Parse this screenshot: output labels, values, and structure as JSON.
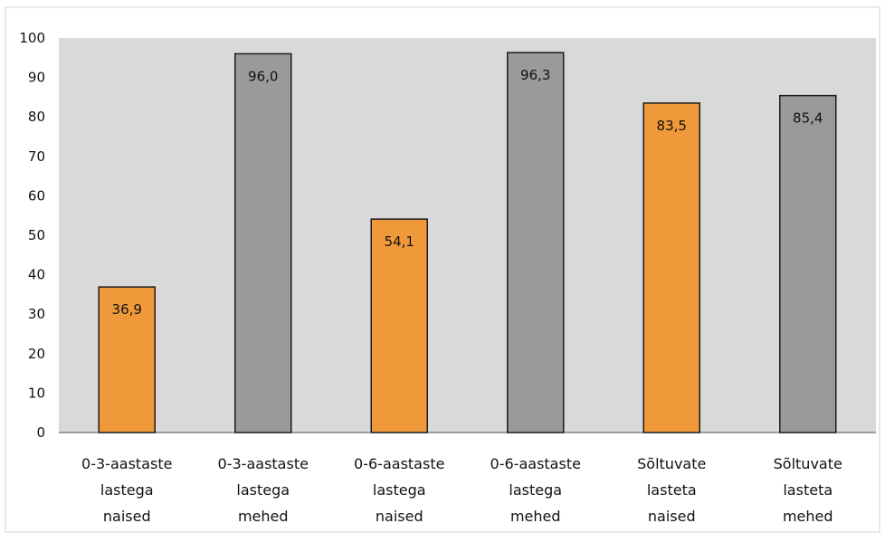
{
  "chart_data": {
    "type": "bar",
    "title": "",
    "xlabel": "",
    "ylabel": "",
    "ylim": [
      0,
      100
    ],
    "yticks": [
      0,
      10,
      20,
      30,
      40,
      50,
      60,
      70,
      80,
      90,
      100
    ],
    "grid": false,
    "legend": "none",
    "categories": [
      [
        "0-3-aastaste",
        "lastega",
        "naised"
      ],
      [
        "0-3-aastaste",
        "lastega",
        "mehed"
      ],
      [
        "0-6-aastaste",
        "lastega",
        "naised"
      ],
      [
        "0-6-aastaste",
        "lastega",
        "mehed"
      ],
      [
        "Sõltuvate",
        "lasteta",
        "naised"
      ],
      [
        "Sõltuvate",
        "lasteta",
        "mehed"
      ]
    ],
    "values": [
      36.9,
      96.0,
      54.1,
      96.3,
      83.5,
      85.4
    ],
    "value_labels": [
      "36,9",
      "96,0",
      "54,1",
      "96,3",
      "83,5",
      "85,4"
    ],
    "colors": {
      "women": "#f0993a",
      "men": "#9a9a9a",
      "plot_background": "#d9d9d9",
      "bar_border": "#1a1a1a"
    },
    "bar_color_keys": [
      "women",
      "men",
      "women",
      "men",
      "women",
      "men"
    ]
  }
}
